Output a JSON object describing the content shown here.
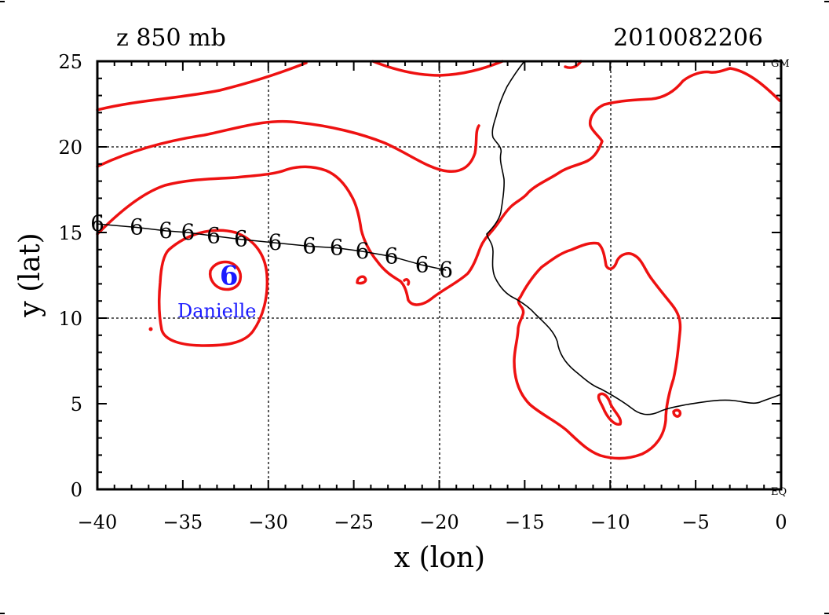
{
  "header": {
    "title": "z 850 mb",
    "datetime": "2010082206"
  },
  "axes": {
    "xlabel": "x (lon)",
    "ylabel": "y (lat)",
    "x_ticks": [
      "−40",
      "−35",
      "−30",
      "−25",
      "−20",
      "−15",
      "−10",
      "−5",
      "0"
    ],
    "y_ticks": [
      "0",
      "5",
      "10",
      "15",
      "20",
      "25"
    ],
    "xlim": [
      -40,
      0
    ],
    "ylim": [
      0,
      25
    ]
  },
  "markers": {
    "gm": "GM",
    "eq": "EQ"
  },
  "storm": {
    "name": "Danielle",
    "symbol": "6",
    "center": [
      -32.3,
      12.5
    ],
    "track": [
      [
        -40.0,
        15.5
      ],
      [
        -37.7,
        15.3
      ],
      [
        -36.0,
        15.1
      ],
      [
        -34.7,
        15.0
      ],
      [
        -33.2,
        14.8
      ],
      [
        -31.6,
        14.6
      ],
      [
        -29.6,
        14.4
      ],
      [
        -27.6,
        14.2
      ],
      [
        -26.0,
        14.1
      ],
      [
        -24.5,
        13.9
      ],
      [
        -22.8,
        13.6
      ],
      [
        -21.0,
        13.1
      ],
      [
        -19.6,
        12.8
      ]
    ]
  },
  "colors": {
    "contour": "#ee1111",
    "storm": "#1a1aff",
    "coast": "#000000",
    "grid": "#000000"
  }
}
